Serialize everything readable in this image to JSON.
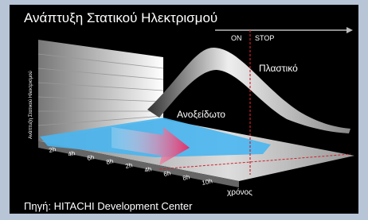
{
  "title": "Ανάπτυξη Στατικού Ηλεκτρισμού",
  "labels": {
    "on": "ON",
    "stop": "STOP",
    "y_axis": "Ανάπτυξη Στατικού Ηλεκτρισμού",
    "plastic": "Πλαστικό",
    "stainless": "Ανοξείδωτο",
    "x_axis": "χρόνος"
  },
  "time_ticks": [
    "2h",
    "4h",
    "6h",
    "8h",
    "2h",
    "4h",
    "6h",
    "8h",
    "10h"
  ],
  "source": "Πηγή: HITACHI Development Center"
}
